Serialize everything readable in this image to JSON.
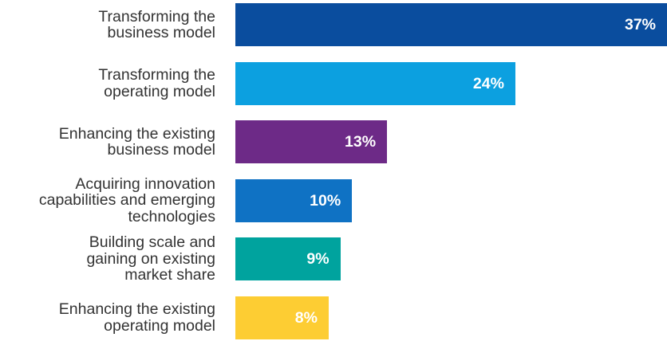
{
  "chart_data": {
    "type": "bar",
    "orientation": "horizontal",
    "categories": [
      "Transforming the\nbusiness model",
      "Transforming the\noperating model",
      "Enhancing the existing\nbusiness model",
      "Acquiring innovation\ncapabilities and emerging\ntechnologies",
      "Building scale and\ngaining on existing\nmarket share",
      "Enhancing the existing\noperating model"
    ],
    "values": [
      37,
      24,
      13,
      10,
      9,
      8
    ],
    "value_labels": [
      "37%",
      "24%",
      "13%",
      "10%",
      "9%",
      "8%"
    ],
    "colors": [
      "#0a4d9e",
      "#0ca0e0",
      "#6d2a87",
      "#0f72c4",
      "#00a39e",
      "#fdcd33"
    ],
    "title": "",
    "xlabel": "",
    "ylabel": "",
    "xlim": [
      0,
      37
    ],
    "grid": false,
    "legend": "none"
  }
}
